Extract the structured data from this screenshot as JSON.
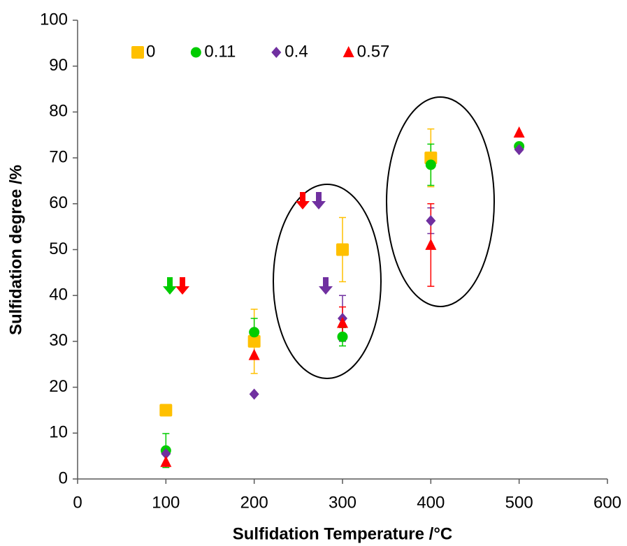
{
  "chart_data": {
    "type": "scatter",
    "x_label": "Sulfidation Temperature /°C",
    "y_label": "Sulfidation degree /%",
    "xlim": [
      0,
      600
    ],
    "xticks": [
      0,
      100,
      200,
      300,
      400,
      500,
      600
    ],
    "ylim": [
      0,
      100
    ],
    "yticks": [
      0,
      10,
      20,
      30,
      40,
      50,
      60,
      70,
      80,
      90,
      100
    ],
    "legend": "top-left",
    "series": [
      {
        "name": "0",
        "color": "#ffc000",
        "marker": "square",
        "x": [
          100,
          200,
          300,
          400
        ],
        "values": [
          15,
          30,
          50,
          70
        ],
        "errors": [
          null,
          7,
          7,
          6.3
        ]
      },
      {
        "name": "0.11",
        "color": "#00cc00",
        "marker": "circle",
        "x": [
          100,
          200,
          300,
          400,
          500
        ],
        "values": [
          6.2,
          32,
          31,
          68.5,
          72.5
        ],
        "errors": [
          3.7,
          3,
          2,
          4.5,
          null
        ]
      },
      {
        "name": "0.4",
        "color": "#7030a0",
        "marker": "diamond",
        "x": [
          100,
          200,
          300,
          400,
          500
        ],
        "values": [
          5.5,
          18.5,
          35,
          56.3,
          71.8
        ],
        "errors": [
          null,
          null,
          5,
          2.8,
          null
        ]
      },
      {
        "name": "0.57",
        "color": "#ff0000",
        "marker": "triangle",
        "x": [
          100,
          200,
          300,
          400,
          500
        ],
        "values": [
          3.7,
          27,
          34,
          51,
          75.5
        ],
        "errors": [
          null,
          null,
          3.5,
          9,
          null
        ]
      }
    ]
  }
}
